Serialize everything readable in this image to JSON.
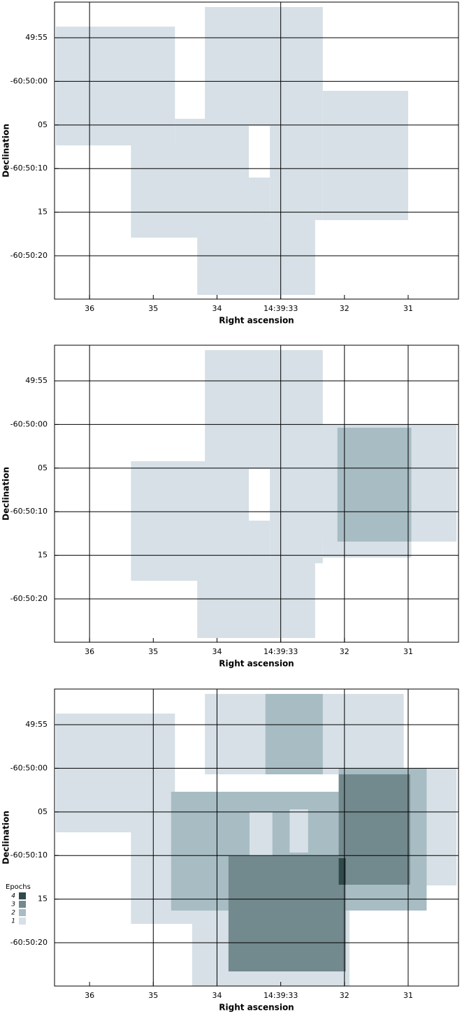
{
  "chart_data": [
    {
      "type": "coverage",
      "xlabel": "Right ascension",
      "ylabel": "Declination",
      "xlim": [
        36.55,
        30.21
      ],
      "ylim": [
        24.97,
        -9.09
      ],
      "xticks": [
        36,
        35,
        34,
        {
          "value": 33,
          "label": "14:39:33"
        },
        32,
        31
      ],
      "yticks": [
        {
          "value": -5,
          "label": "49:55"
        },
        {
          "value": 0,
          "label": "-60:50:00"
        },
        {
          "value": 5,
          "label": "05"
        },
        {
          "value": 10,
          "label": "-60:50:10"
        },
        {
          "value": 15,
          "label": "15"
        },
        {
          "value": 20,
          "label": "-60:50:20"
        }
      ],
      "xgrid": [
        36,
        33
      ],
      "epoch_colors": [
        "#d6e0e6",
        "#a7bcc3",
        "#72898d",
        "#2f4a4a"
      ],
      "regions": [
        {
          "ra": [
            36.53,
            34.66
          ],
          "dec": [
            -6.28,
            7.34
          ],
          "epochs": 1
        },
        {
          "ra": [
            34.19,
            32.34
          ],
          "dec": [
            -8.53,
            5.1
          ],
          "epochs": 1
        },
        {
          "ra": [
            32.34,
            31.0
          ],
          "dec": [
            1.09,
            15.91
          ],
          "epochs": 1
        },
        {
          "ra": [
            34.66,
            33.5
          ],
          "dec": [
            4.29,
            7.34
          ],
          "epochs": 1
        },
        {
          "ra": [
            35.35,
            33.5
          ],
          "dec": [
            7.34,
            17.92
          ],
          "epochs": 1
        },
        {
          "ra": [
            33.17,
            32.34
          ],
          "dec": [
            5.1,
            15.91
          ],
          "epochs": 1
        },
        {
          "ra": [
            33.5,
            33.17
          ],
          "dec": [
            11.03,
            15.91
          ],
          "epochs": 1
        },
        {
          "ra": [
            34.31,
            32.46
          ],
          "dec": [
            15.91,
            24.49
          ],
          "epochs": 1
        }
      ]
    },
    {
      "type": "coverage",
      "xlabel": "Right ascension",
      "ylabel": "Declination",
      "xlim": [
        36.55,
        30.21
      ],
      "ylim": [
        24.97,
        -9.09
      ],
      "xticks": [
        36,
        35,
        34,
        {
          "value": 33,
          "label": "14:39:33"
        },
        32,
        31
      ],
      "yticks": [
        {
          "value": -5,
          "label": "49:55"
        },
        {
          "value": 0,
          "label": "-60:50:00"
        },
        {
          "value": 5,
          "label": "05"
        },
        {
          "value": 10,
          "label": "-60:50:10"
        },
        {
          "value": 15,
          "label": "15"
        },
        {
          "value": 20,
          "label": "-60:50:20"
        }
      ],
      "xgrid": [
        36,
        33,
        32,
        31
      ],
      "epoch_colors": [
        "#d6e0e6",
        "#a7bcc3",
        "#72898d",
        "#2f4a4a"
      ],
      "regions": [
        {
          "ra": [
            34.19,
            32.34
          ],
          "dec": [
            -8.53,
            5.1
          ],
          "epochs": 1
        },
        {
          "ra": [
            32.34,
            30.24
          ],
          "dec": [
            -0.03,
            13.43
          ],
          "epochs": 1
        },
        {
          "ra": [
            32.34,
            30.95
          ],
          "dec": [
            -0.03,
            15.27
          ],
          "epochs": 1
        },
        {
          "ra": [
            35.35,
            33.5
          ],
          "dec": [
            4.21,
            17.92
          ],
          "epochs": 1
        },
        {
          "ra": [
            33.17,
            32.34
          ],
          "dec": [
            5.1,
            15.91
          ],
          "epochs": 1
        },
        {
          "ra": [
            33.5,
            33.17
          ],
          "dec": [
            11.03,
            15.91
          ],
          "epochs": 1
        },
        {
          "ra": [
            34.31,
            32.46
          ],
          "dec": [
            15.91,
            24.49
          ],
          "epochs": 1
        },
        {
          "ra": [
            32.11,
            30.95
          ],
          "dec": [
            0.37,
            13.43
          ],
          "epochs": 2
        }
      ]
    },
    {
      "type": "coverage",
      "xlabel": "Right ascension",
      "ylabel": "Declination",
      "xlim": [
        36.55,
        30.21
      ],
      "ylim": [
        24.97,
        -9.09
      ],
      "xticks": [
        36,
        35,
        34,
        {
          "value": 33,
          "label": "14:39:33"
        },
        32,
        31
      ],
      "yticks": [
        {
          "value": -5,
          "label": "49:55"
        },
        {
          "value": 0,
          "label": "-60:50:00"
        },
        {
          "value": 5,
          "label": "05"
        },
        {
          "value": 10,
          "label": "-60:50:10"
        },
        {
          "value": 15,
          "label": "15"
        },
        {
          "value": 20,
          "label": "-60:50:20"
        }
      ],
      "xgrid": [
        35,
        34,
        32,
        31
      ],
      "epoch_colors": [
        "#d6e0e6",
        "#a7bcc3",
        "#72898d",
        "#2f4a4a"
      ],
      "legend": {
        "title": "Epochs",
        "levels": [
          4,
          3,
          2,
          1
        ]
      },
      "regions": [
        {
          "ra": [
            36.53,
            34.66
          ],
          "dec": [
            -6.28,
            7.34
          ],
          "epochs": 1
        },
        {
          "ra": [
            34.19,
            31.07
          ],
          "dec": [
            -8.53,
            0.69
          ],
          "epochs": 1
        },
        {
          "ra": [
            31.07,
            30.24
          ],
          "dec": [
            -0.03,
            13.43
          ],
          "epochs": 1
        },
        {
          "ra": [
            35.35,
            34.31
          ],
          "dec": [
            7.34,
            17.84
          ],
          "epochs": 1
        },
        {
          "ra": [
            34.39,
            31.92
          ],
          "dec": [
            7.34,
            24.97
          ],
          "epochs": 1
        },
        {
          "ra": [
            31.92,
            30.97
          ],
          "dec": [
            0.69,
            15.91
          ],
          "epochs": 1
        },
        {
          "ra": [
            33.24,
            32.34
          ],
          "dec": [
            -8.53,
            0.69
          ],
          "epochs": 2
        },
        {
          "ra": [
            34.72,
            30.71
          ],
          "dec": [
            2.69,
            16.31
          ],
          "epochs": 2
        },
        {
          "ra": [
            32.09,
            30.71
          ],
          "dec": [
            -0.03,
            2.69
          ],
          "epochs": 2
        },
        {
          "ra": [
            33.49,
            33.13
          ],
          "dec": [
            5.02,
            9.98
          ],
          "epochs": 1
        },
        {
          "ra": [
            32.86,
            32.57
          ],
          "dec": [
            4.7,
            9.66
          ],
          "epochs": 1
        },
        {
          "ra": [
            32.09,
            30.97
          ],
          "dec": [
            0.69,
            13.35
          ],
          "epochs": 3
        },
        {
          "ra": [
            33.82,
            31.98
          ],
          "dec": [
            10.06,
            23.29
          ],
          "epochs": 3
        },
        {
          "ra": [
            32.09,
            31.98
          ],
          "dec": [
            10.3,
            13.35
          ],
          "epochs": 4
        }
      ]
    }
  ]
}
